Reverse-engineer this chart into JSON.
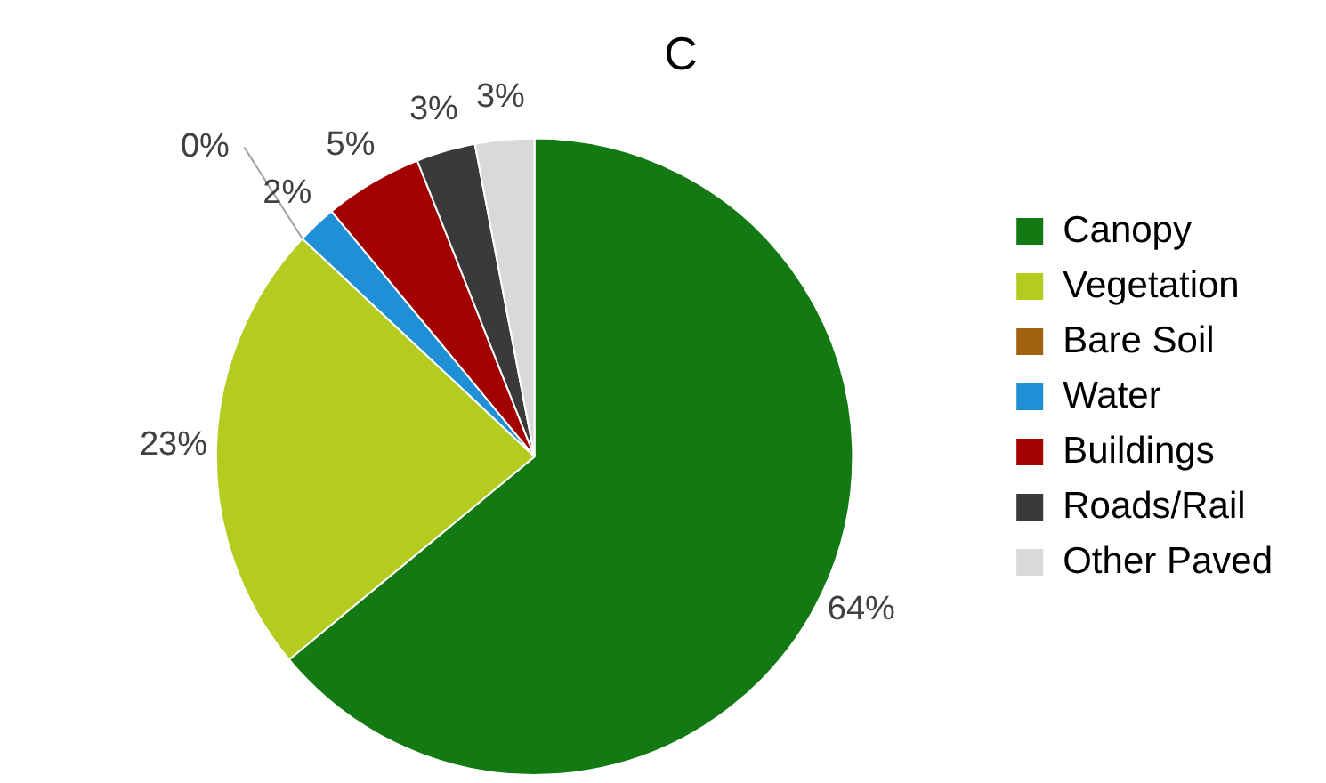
{
  "chart_data": {
    "type": "pie",
    "title": "C",
    "categories": [
      "Canopy",
      "Vegetation",
      "Bare Soil",
      "Water",
      "Buildings",
      "Roads/Rail",
      "Other Paved"
    ],
    "values": [
      64,
      23,
      0,
      2,
      5,
      3,
      3
    ],
    "colors": [
      "#137a13",
      "#b3cc1f",
      "#a0620f",
      "#1f8fd6",
      "#a30000",
      "#3a3a3a",
      "#d9d9d9"
    ],
    "value_labels": [
      "64%",
      "23%",
      "0%",
      "2%",
      "5%",
      "3%",
      "3%"
    ],
    "legend": "right"
  }
}
